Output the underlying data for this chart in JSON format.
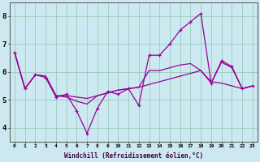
{
  "xlabel": "Windchill (Refroidissement éolien,°C)",
  "background_color": "#cce8f0",
  "grid_color": "#99ccbb",
  "line_color": "#990099",
  "x": [
    0,
    1,
    2,
    3,
    4,
    5,
    6,
    7,
    8,
    9,
    10,
    11,
    12,
    13,
    14,
    15,
    16,
    17,
    18,
    19,
    20,
    21,
    22,
    23
  ],
  "line1": [
    6.7,
    5.4,
    5.9,
    5.8,
    5.1,
    5.2,
    4.6,
    3.8,
    4.7,
    5.3,
    5.2,
    5.4,
    4.8,
    6.6,
    6.6,
    7.0,
    7.5,
    7.8,
    8.1,
    5.6,
    6.4,
    6.2,
    5.4,
    5.5
  ],
  "line2": [
    6.7,
    5.4,
    5.9,
    5.85,
    5.15,
    5.15,
    5.1,
    5.05,
    5.15,
    5.25,
    5.35,
    5.4,
    5.45,
    5.55,
    5.65,
    5.75,
    5.85,
    5.95,
    6.05,
    5.65,
    5.6,
    5.5,
    5.4,
    5.5
  ],
  "line3": [
    6.7,
    5.4,
    5.9,
    5.85,
    5.15,
    5.1,
    4.95,
    4.85,
    5.15,
    5.25,
    5.35,
    5.4,
    5.45,
    6.05,
    6.05,
    6.15,
    6.25,
    6.3,
    6.05,
    5.6,
    6.35,
    6.15,
    5.4,
    5.5
  ],
  "ylim": [
    3.5,
    8.5
  ],
  "yticks": [
    4,
    5,
    6,
    7,
    8
  ],
  "xlim": [
    -0.5,
    23.5
  ]
}
